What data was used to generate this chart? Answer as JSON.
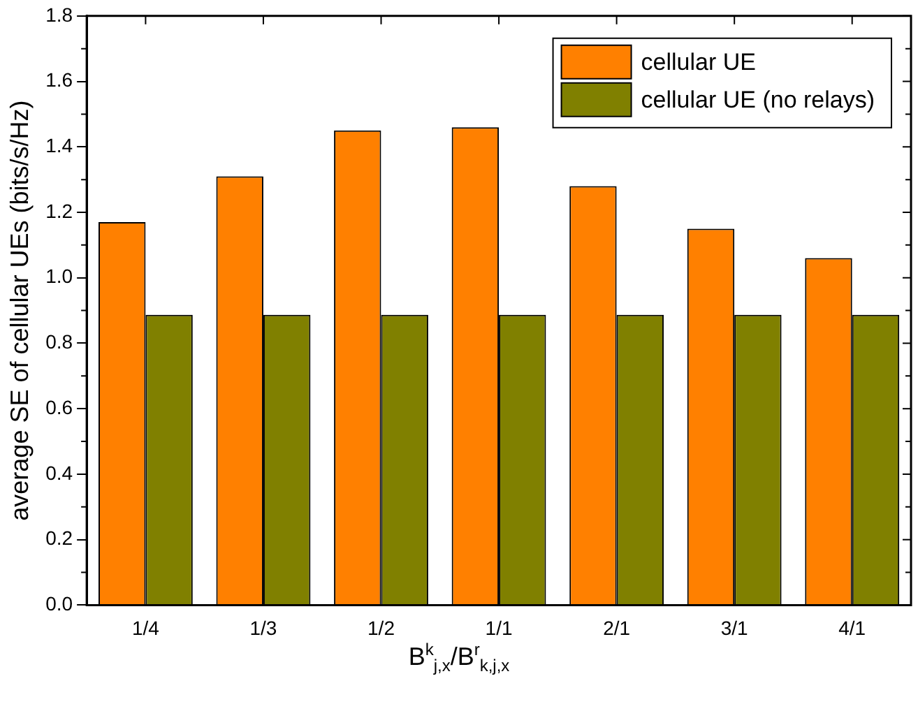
{
  "chart_data": {
    "type": "bar",
    "xlabel": "B$^{k}$$_{j,x}$/B$^{r}$$_{k,j,x}$",
    "ylabel": "average SE of cellular UEs (bits/s/Hz)",
    "categories": [
      "1/4",
      "1/3",
      "1/2",
      "1/1",
      "2/1",
      "3/1",
      "4/1"
    ],
    "series": [
      {
        "name": "cellular UE",
        "color": "#ff8000",
        "values": [
          1.17,
          1.31,
          1.45,
          1.46,
          1.28,
          1.15,
          1.06
        ]
      },
      {
        "name": "cellular UE (no relays)",
        "color": "#808000",
        "values": [
          0.887,
          0.887,
          0.887,
          0.887,
          0.887,
          0.887,
          0.887
        ]
      }
    ],
    "ylim": [
      0,
      1.8
    ],
    "yticks": [
      {
        "value": 0,
        "label": "0.0"
      },
      {
        "value": 0.2,
        "label": "0.2"
      },
      {
        "value": 0.4,
        "label": "0.4"
      },
      {
        "value": 0.6,
        "label": "0.6"
      },
      {
        "value": 0.8,
        "label": "0.8"
      },
      {
        "value": 1,
        "label": "1.0"
      },
      {
        "value": 1.2,
        "label": "1.2"
      },
      {
        "value": 1.4,
        "label": "1.4"
      },
      {
        "value": 1.6,
        "label": "1.6"
      },
      {
        "value": 1.8,
        "label": "1.8"
      }
    ],
    "grid": false,
    "legend": "top right"
  }
}
